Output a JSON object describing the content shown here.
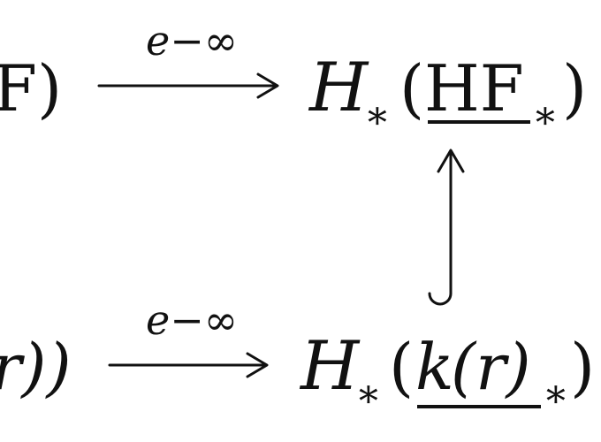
{
  "diagram": {
    "top_row": {
      "left_fragment": "F)",
      "arrow_label": "e−∞",
      "right_H": "H",
      "right_sub": "∗",
      "right_open": "(",
      "right_hf": "HF",
      "right_hf_sub": "∗",
      "right_close": ")"
    },
    "vertical_arrow": {
      "type": "hook-up"
    },
    "bottom_row": {
      "left_fragment": "r))",
      "arrow_label": "e−∞",
      "right_H": "H",
      "right_sub": "∗",
      "right_open": "(",
      "right_k": "k",
      "right_paren_r": "(r)",
      "right_k_sub": "∗",
      "right_close": ")"
    }
  }
}
